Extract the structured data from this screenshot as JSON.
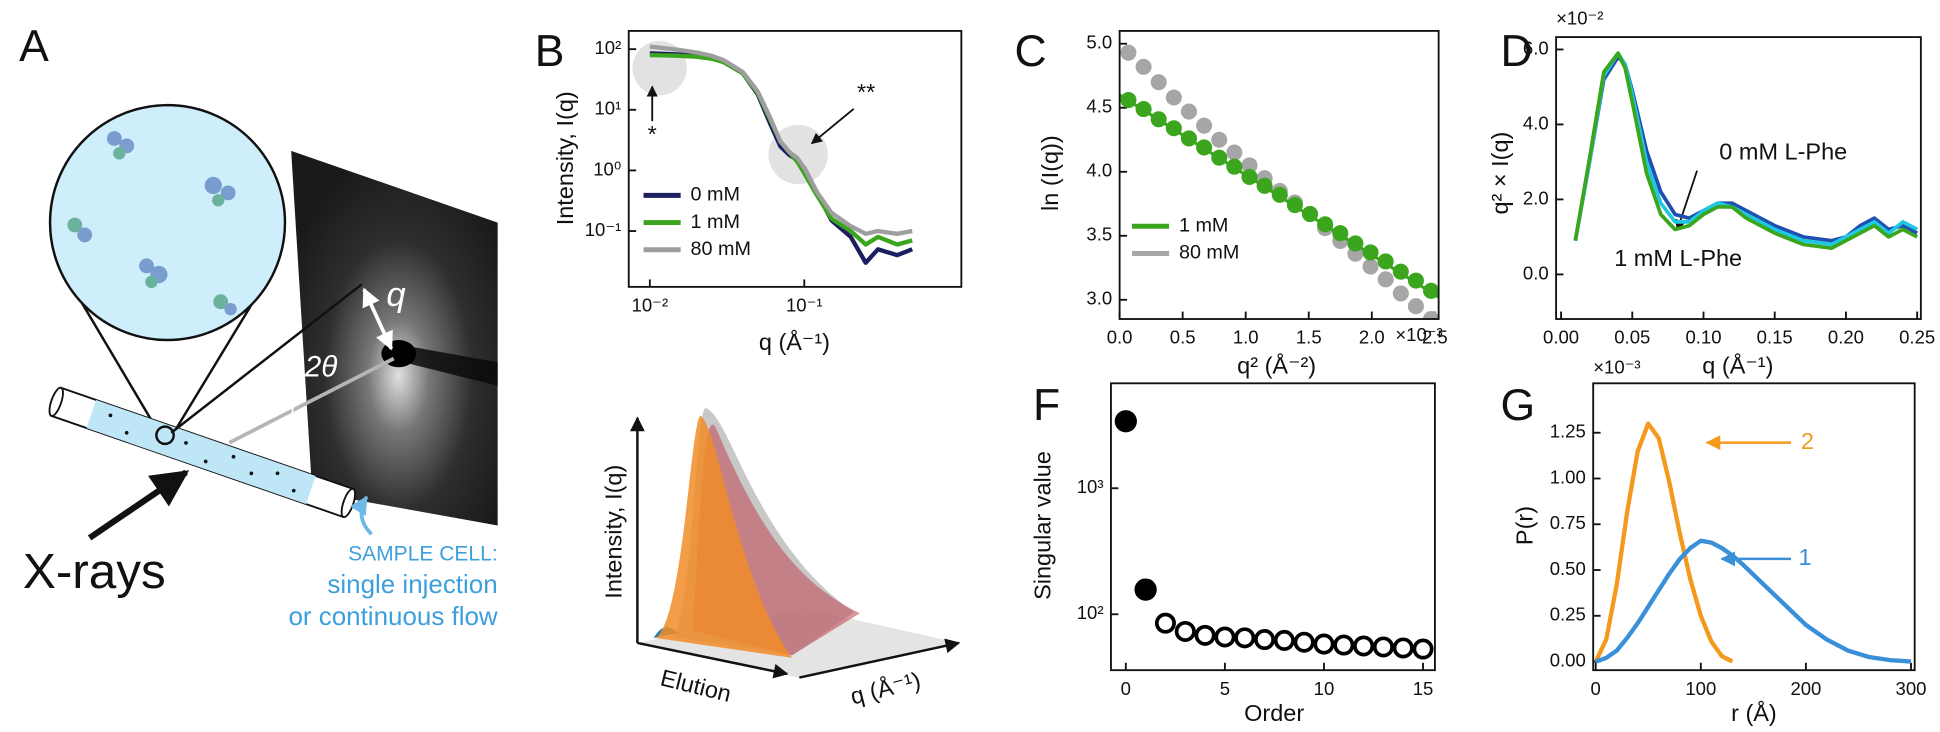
{
  "panel_a": {
    "label": "A",
    "q": "q",
    "angle": "2θ",
    "beam": "X-rays",
    "cell_title": "SAMPLE CELL:",
    "cell_mode_1": "single injection",
    "cell_mode_2": "or continuous flow"
  },
  "panel_b_schematic": {
    "ylabel": "Intensity, I(q)",
    "xlabel": "Elution",
    "zlabel": "q (Å⁻¹)"
  },
  "chart_data": [
    {
      "type": "line",
      "label": "B",
      "ylabel": "Intensity, I(q)",
      "xlabel": "q (Å⁻¹)",
      "xscale": "log",
      "yscale": "log",
      "xlim": [
        0.0073,
        1.04
      ],
      "ylim": [
        0.012,
        200
      ],
      "xticks": [
        {
          "value": 0.01,
          "label": "10⁻²"
        },
        {
          "value": 0.1,
          "label": "10⁻¹"
        }
      ],
      "yticks": [
        {
          "value": 0.1,
          "label": "10⁻¹"
        },
        {
          "value": 1,
          "label": "10⁰"
        },
        {
          "value": 10,
          "label": "10¹"
        },
        {
          "value": 100,
          "label": "10²"
        }
      ],
      "x": [
        0.01,
        0.012,
        0.015,
        0.02,
        0.025,
        0.03,
        0.04,
        0.05,
        0.06,
        0.07,
        0.08,
        0.09,
        0.1,
        0.12,
        0.15,
        0.2,
        0.25,
        0.3,
        0.4,
        0.5
      ],
      "series": [
        {
          "name": "0 mM",
          "color": "#1b1f5e",
          "values": [
            85,
            84,
            82,
            78,
            72,
            62,
            40,
            18,
            6,
            2.5,
            1.8,
            1.5,
            1.1,
            0.45,
            0.15,
            0.08,
            0.03,
            0.05,
            0.04,
            0.05
          ]
        },
        {
          "name": "1 mM",
          "color": "#3aa51d",
          "values": [
            80,
            79,
            78,
            75,
            70,
            61,
            40,
            19,
            7,
            3,
            2,
            1.4,
            0.9,
            0.4,
            0.16,
            0.1,
            0.06,
            0.08,
            0.06,
            0.07
          ]
        },
        {
          "name": "80 mM",
          "color": "#9e9e9e",
          "values": [
            110,
            105,
            98,
            88,
            78,
            66,
            42,
            20,
            7.5,
            3,
            2,
            1.6,
            1.1,
            0.45,
            0.2,
            0.12,
            0.09,
            0.1,
            0.09,
            0.1
          ]
        }
      ],
      "legend": "lower left",
      "annotations": [
        {
          "text": "*"
        },
        {
          "text": "**"
        }
      ]
    },
    {
      "type": "scatter",
      "label": "C",
      "ylabel": "ln (I(q))",
      "xlabel": "q² (Å⁻²)",
      "multiplier": "×10⁻³",
      "xlim": [
        0,
        2.53
      ],
      "ylim": [
        2.85,
        5.1
      ],
      "xticks": [
        {
          "value": 0,
          "label": "0.0"
        },
        0.5,
        {
          "value": 1,
          "label": "1.0"
        },
        1.5,
        {
          "value": 2,
          "label": "2.0"
        },
        2.5
      ],
      "yticks": [
        {
          "value": 3,
          "label": "3.0"
        },
        3.5,
        {
          "value": 4,
          "label": "4.0"
        },
        4.5,
        {
          "value": 5,
          "label": "5.0"
        }
      ],
      "x": [
        0.07,
        0.19,
        0.31,
        0.43,
        0.55,
        0.67,
        0.79,
        0.91,
        1.03,
        1.15,
        1.27,
        1.39,
        1.51,
        1.63,
        1.75,
        1.87,
        1.99,
        2.11,
        2.23,
        2.35,
        2.47
      ],
      "series": [
        {
          "name": "1 mM",
          "color": "#3aa51d",
          "values": [
            4.56,
            4.49,
            4.41,
            4.34,
            4.26,
            4.19,
            4.11,
            4.04,
            3.96,
            3.89,
            3.82,
            3.74,
            3.67,
            3.59,
            3.52,
            3.44,
            3.37,
            3.3,
            3.22,
            3.15,
            3.07
          ]
        },
        {
          "name": "80 mM",
          "color": "#a6a6a6",
          "values": [
            4.93,
            4.82,
            4.7,
            4.58,
            4.47,
            4.36,
            4.25,
            4.15,
            4.05,
            3.95,
            3.85,
            3.76,
            3.67,
            3.56,
            3.46,
            3.36,
            3.26,
            3.16,
            3.05,
            2.95,
            2.85
          ]
        }
      ],
      "fit": {
        "color": "#3aa51d",
        "x": [
          0,
          2.53
        ],
        "values": [
          4.6,
          3.02
        ]
      },
      "legend": "lower left"
    },
    {
      "type": "line",
      "label": "D",
      "ylabel": "q² × I(q)",
      "xlabel": "q (Å⁻¹)",
      "multiplier": "×10⁻²",
      "xlim": [
        -0.0035,
        0.2526
      ],
      "ylim": [
        -1.19,
        6.33
      ],
      "xticks": [
        {
          "value": 0,
          "label": "0.00"
        },
        0.05,
        {
          "value": 0.1,
          "label": "0.10"
        },
        0.15,
        {
          "value": 0.2,
          "label": "0.20"
        },
        0.25
      ],
      "yticks": [
        {
          "value": 0,
          "label": "0.0"
        },
        {
          "value": 2,
          "label": "2.0"
        },
        {
          "value": 4,
          "label": "4.0"
        },
        {
          "value": 6,
          "label": "6.0"
        }
      ],
      "x": [
        0.01,
        0.02,
        0.03,
        0.04,
        0.045,
        0.05,
        0.06,
        0.07,
        0.08,
        0.09,
        0.1,
        0.11,
        0.12,
        0.13,
        0.15,
        0.17,
        0.19,
        0.2,
        0.21,
        0.22,
        0.23,
        0.24,
        0.25
      ],
      "series": [
        {
          "color": "#1f4fb0",
          "values": [
            0.9,
            3.0,
            5.2,
            5.8,
            5.6,
            4.9,
            3.3,
            2.2,
            1.6,
            1.5,
            1.7,
            1.9,
            1.9,
            1.7,
            1.3,
            1.0,
            0.9,
            1.0,
            1.3,
            1.5,
            1.2,
            1.3,
            1.1
          ]
        },
        {
          "color": "#1ec8e0",
          "values": [
            0.9,
            3.0,
            5.3,
            5.9,
            5.6,
            4.8,
            3.0,
            1.9,
            1.4,
            1.4,
            1.7,
            1.9,
            1.8,
            1.6,
            1.2,
            0.9,
            0.8,
            1.0,
            1.2,
            1.4,
            1.1,
            1.4,
            1.2
          ]
        },
        {
          "color": "#3aa51d",
          "values": [
            0.9,
            3.1,
            5.4,
            5.9,
            5.5,
            4.6,
            2.7,
            1.6,
            1.2,
            1.3,
            1.6,
            1.8,
            1.8,
            1.5,
            1.1,
            0.8,
            0.7,
            0.9,
            1.1,
            1.3,
            1.0,
            1.2,
            1.0
          ]
        }
      ],
      "annotations": [
        {
          "text": "0 mM L-Phe"
        },
        {
          "text": "1 mM L-Phe"
        }
      ]
    },
    {
      "type": "scatter",
      "label": "F",
      "ylabel": "Singular value",
      "xlabel": "Order",
      "yscale": "log",
      "xlim": [
        -0.75,
        15.6
      ],
      "ylim": [
        36,
        6800
      ],
      "xticks": [
        0,
        5,
        10,
        15
      ],
      "yticks": [
        {
          "value": 100,
          "label": "10²"
        },
        {
          "value": 1000,
          "label": "10³"
        }
      ],
      "series": [
        {
          "color": "#000000",
          "x": [
            0,
            1
          ],
          "values": [
            3400,
            157
          ]
        },
        {
          "color": "#000000",
          "fill": "none",
          "x": [
            2,
            3,
            4,
            5,
            6,
            7,
            8,
            9,
            10,
            11,
            12,
            13,
            14,
            15
          ],
          "values": [
            85,
            73,
            68,
            66,
            65,
            63,
            62,
            60,
            58,
            57,
            56,
            55,
            54,
            53
          ]
        }
      ]
    },
    {
      "type": "line",
      "label": "G",
      "ylabel": "P(r)",
      "xlabel": "r (Å)",
      "multiplier": "×10⁻³",
      "xlim": [
        -2.4,
        303.5
      ],
      "ylim": [
        -0.047,
        1.52
      ],
      "xticks": [
        0,
        100,
        200,
        300
      ],
      "yticks": [
        {
          "value": 0,
          "label": "0.00"
        },
        0.25,
        {
          "value": 0.5,
          "label": "0.50"
        },
        0.75,
        {
          "value": 1,
          "label": "1.00"
        },
        1.25
      ],
      "x": [
        0,
        10,
        20,
        30,
        40,
        50,
        60,
        70,
        80,
        90,
        100,
        110,
        120,
        130,
        140,
        160,
        180,
        200,
        220,
        240,
        260,
        280,
        300
      ],
      "series": [
        {
          "color": "#f39a1e",
          "values": [
            0,
            0.12,
            0.42,
            0.82,
            1.15,
            1.3,
            1.22,
            0.98,
            0.7,
            0.45,
            0.25,
            0.11,
            0.03,
            0,
            null,
            null,
            null,
            null,
            null,
            null,
            null,
            null,
            null
          ]
        },
        {
          "color": "#3a8fd9",
          "values": [
            0,
            0.02,
            0.06,
            0.13,
            0.21,
            0.3,
            0.39,
            0.48,
            0.56,
            0.62,
            0.66,
            0.65,
            0.62,
            0.58,
            0.53,
            0.42,
            0.31,
            0.2,
            0.12,
            0.06,
            0.025,
            0.008,
            0
          ]
        }
      ],
      "annotations": [
        {
          "text": "2",
          "color": "#f39a1e"
        },
        {
          "text": "1",
          "color": "#3a8fd9"
        }
      ]
    }
  ]
}
